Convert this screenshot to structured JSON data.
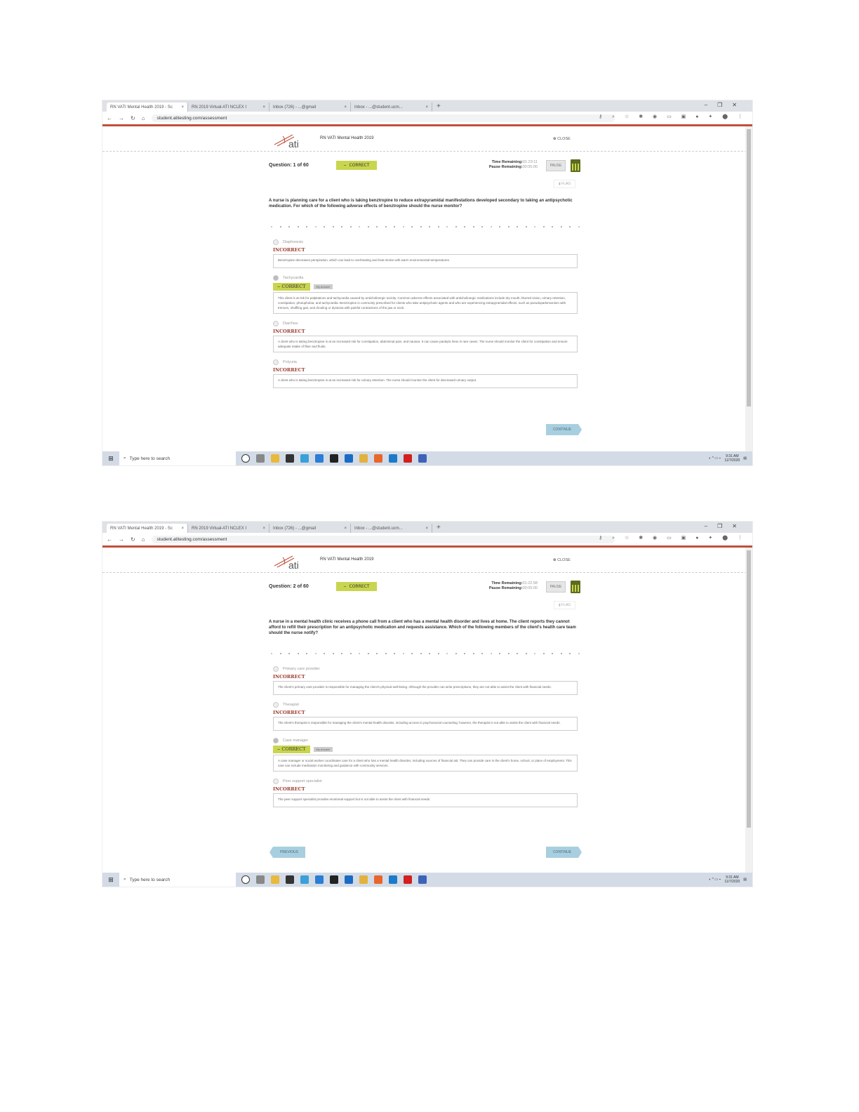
{
  "screenshots": [
    {
      "tabs": [
        "RN VATI Mental Health 2019 - Sc",
        "RN 2019 Virtual-ATI NCLEX I",
        "Inbox (726) - ...@gmail",
        "Inbox - ...@student.ucm..."
      ],
      "url": "student.atitesting.com/assessment",
      "app_title": "RN VATI Mental Health 2019",
      "logo_text": "ati",
      "close": "CLOSE",
      "question_label": "Question: 1 of 60",
      "status": "CORRECT",
      "time_remaining_label": "Time Remaining:",
      "time_remaining": "01:23:11",
      "pause_remaining_label": "Pause Remaining:",
      "pause_remaining": "00:05:00",
      "pause": "PAUSE",
      "flag": "FLAG",
      "question": "A nurse is planning care for a client who is taking benztropine to reduce extrapyramidal manifestations developed secondary to taking an antipsychotic medication. For which of the following adverse effects of benztropine should the nurse monitor?",
      "options": [
        {
          "label": "Diaphoresis",
          "result": "INCORRECT",
          "selected": false,
          "explanation": "Benztropine decreases perspiration, which can lead to overheating and heat stroke with warm environmental temperatures."
        },
        {
          "label": "Tachycardia",
          "result": "CORRECT",
          "selected": true,
          "my_answer": "My Answer",
          "explanation": "This client is at risk for palpitations and tachycardia caused by anticholinergic toxicity. Common adverse effects associated with anticholinergic medications include dry mouth, blurred vision, urinary retention, constipation, photophobia, and tachycardia. Benztropine is commonly prescribed for clients who take antipsychotic agents and who are experiencing extrapyramidal effects, such as pseudoparkinsonism with tremors, shuffling gait, and drooling or dystonia with painful contractions of the jaw or neck."
        },
        {
          "label": "Diarrhea",
          "result": "INCORRECT",
          "selected": false,
          "explanation": "A client who is taking benztropine is at an increased risk for constipation, abdominal pain, and nausea. It can cause paralytic ileus in rare cases. The nurse should monitor the client for constipation and ensure adequate intake of fiber and fluids."
        },
        {
          "label": "Polyuria",
          "result": "INCORRECT",
          "selected": false,
          "explanation": "A client who is taking benztropine is at an increased risk for urinary retention. The nurse should monitor the client for decreased urinary output."
        }
      ],
      "previous": "",
      "continue": "CONTINUE",
      "taskbar_search": "Type here to search",
      "clock_time": "9:31 AM",
      "clock_date": "11/7/2020"
    },
    {
      "tabs": [
        "RN VATI Mental Health 2019 - Sc",
        "RN 2019 Virtual-ATI NCLEX I",
        "Inbox (726) - ...@gmail",
        "Inbox - ...@student.ucm..."
      ],
      "url": "student.atitesting.com/assessment",
      "app_title": "RN VATI Mental Health 2019",
      "logo_text": "ati",
      "close": "CLOSE",
      "question_label": "Question: 2 of 60",
      "status": "CORRECT",
      "time_remaining_label": "Time Remaining:",
      "time_remaining": "01:22:58",
      "pause_remaining_label": "Pause Remaining:",
      "pause_remaining": "00:05:00",
      "pause": "PAUSE",
      "flag": "FLAG",
      "question": "A nurse in a mental health clinic receives a phone call from a client who has a mental health disorder and lives at home. The client reports they cannot afford to refill their prescription for an antipsychotic medication and requests assistance. Which of the following members of the client's health care team should the nurse notify?",
      "options": [
        {
          "label": "Primary care provider",
          "result": "INCORRECT",
          "selected": false,
          "explanation": "The client's primary care provider is responsible for managing the client's physical well-being. Although the provider can write prescriptions, they are not able to assist the client with financial needs."
        },
        {
          "label": "Therapist",
          "result": "INCORRECT",
          "selected": false,
          "explanation": "The client's therapist is responsible for managing the client's mental health disorder, including access to psychosocial counseling; however, the therapist is not able to assist the client with financial needs."
        },
        {
          "label": "Case manager",
          "result": "CORRECT",
          "selected": true,
          "my_answer": "My Answer",
          "explanation": "A case manager or social worker coordinates care for a client who has a mental health disorder, including sources of financial aid. They can provide care in the client's home, school, or place of employment. This care can include medication monitoring and guidance with community services."
        },
        {
          "label": "Peer support specialist",
          "result": "INCORRECT",
          "selected": false,
          "explanation": "The peer support specialist provides emotional support but is not able to assist the client with financial needs."
        }
      ],
      "previous": "PREVIOUS",
      "continue": "CONTINUE",
      "taskbar_search": "Type here to search",
      "clock_time": "9:31 AM",
      "clock_date": "11/7/2020"
    }
  ],
  "colors": {
    "accent_red": "#c0503a",
    "correct_green": "#c9d54e",
    "incorrect_red": "#9b3a2e",
    "button_blue": "#a8cfe0"
  }
}
